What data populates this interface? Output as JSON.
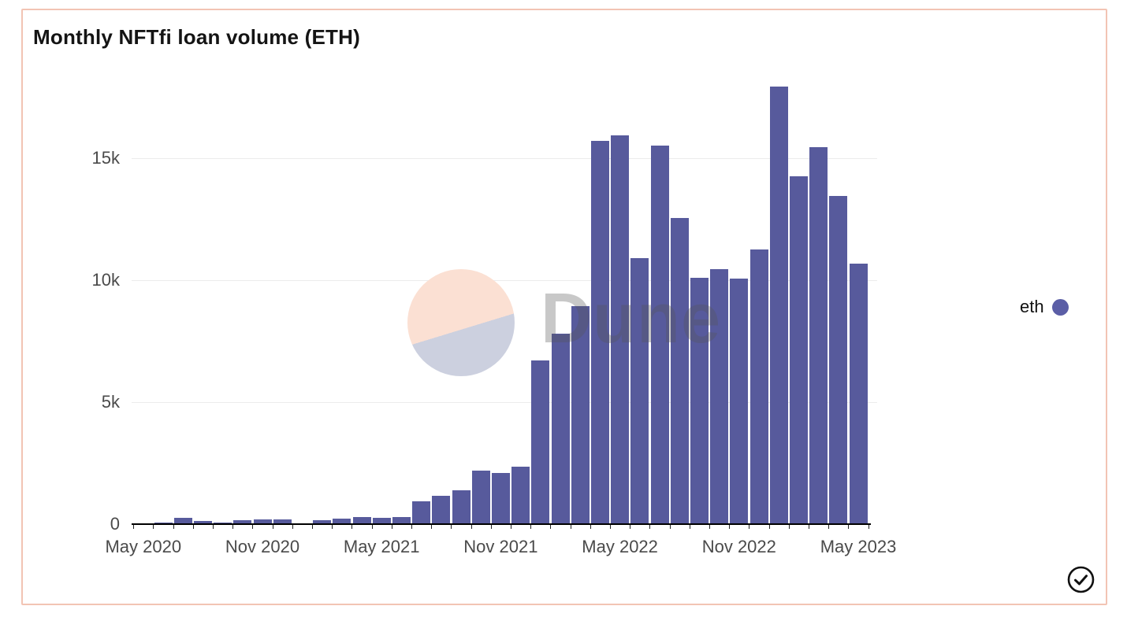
{
  "card": {
    "title": "Monthly NFTfi loan volume (ETH)"
  },
  "legend": {
    "label": "eth"
  },
  "watermark": {
    "text": "Dune"
  },
  "colors": {
    "bar": "#575a9c",
    "legend_dot": "#5b5ea6",
    "card_border": "#f2c4b4",
    "grid": "#ececec",
    "axis": "#000000",
    "watermark_pink": "#fbe0d3",
    "watermark_lavender": "#ccd0df"
  },
  "chart_data": {
    "type": "bar",
    "title": "Monthly NFTfi loan volume (ETH)",
    "x": [
      "May 2020",
      "Jun 2020",
      "Jul 2020",
      "Aug 2020",
      "Sep 2020",
      "Oct 2020",
      "Nov 2020",
      "Dec 2020",
      "Jan 2021",
      "Feb 2021",
      "Mar 2021",
      "Apr 2021",
      "May 2021",
      "Jun 2021",
      "Jul 2021",
      "Aug 2021",
      "Sep 2021",
      "Oct 2021",
      "Nov 2021",
      "Dec 2021",
      "Jan 2022",
      "Feb 2022",
      "Mar 2022",
      "Apr 2022",
      "May 2022",
      "Jun 2022",
      "Jul 2022",
      "Aug 2022",
      "Sep 2022",
      "Oct 2022",
      "Nov 2022",
      "Dec 2022",
      "Jan 2023",
      "Feb 2023",
      "Mar 2023",
      "Apr 2023",
      "May 2023"
    ],
    "series": [
      {
        "name": "eth",
        "values": [
          20,
          80,
          260,
          140,
          50,
          150,
          200,
          190,
          40,
          160,
          220,
          280,
          270,
          290,
          950,
          1150,
          1380,
          2200,
          2100,
          2350,
          6700,
          7800,
          8950,
          15700,
          15950,
          10900,
          15500,
          12550,
          10100,
          10450,
          10050,
          11270,
          17950,
          14250,
          15450,
          13450,
          10670
        ]
      }
    ],
    "xtick_labels": [
      "May 2020",
      "Nov 2020",
      "May 2021",
      "Nov 2021",
      "May 2022",
      "Nov 2022",
      "May 2023"
    ],
    "xtick_every": 6,
    "yticks": [
      {
        "label": "0",
        "value": 0
      },
      {
        "label": "5k",
        "value": 5000
      },
      {
        "label": "10k",
        "value": 10000
      },
      {
        "label": "15k",
        "value": 15000
      }
    ],
    "ylim": [
      0,
      18600
    ],
    "grid": "horizontal",
    "legend_position": "right"
  }
}
